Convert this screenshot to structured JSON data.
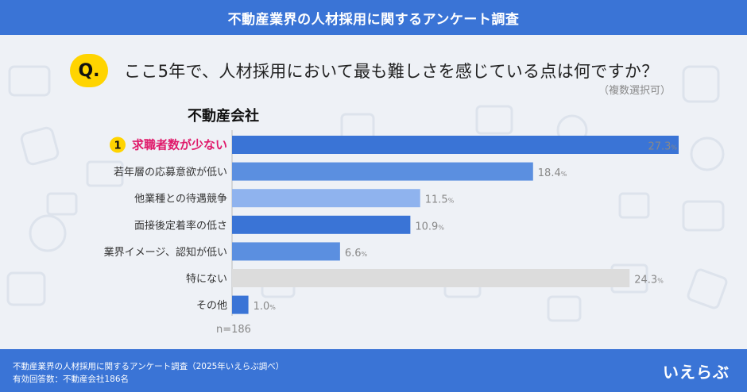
{
  "header": {
    "title": "不動産業界の人材採用に関するアンケート調査"
  },
  "question": {
    "badge": "Q.",
    "text": "ここ5年で、人材採用において最も難しさを感じている点は何ですか？",
    "note": "（複数選択可）"
  },
  "group_label": "不動産会社",
  "rank_badge": "1",
  "colors": {
    "header": "#3a74d6",
    "bar_primary": "#3a74d6",
    "bar_mid": "#5b8fe0",
    "bar_light": "#8fb3ee",
    "bar_other": "#dcdcdc",
    "highlight_text": "#e0196a",
    "badge": "#ffd400"
  },
  "chart_data": {
    "type": "bar",
    "orientation": "horizontal",
    "categories": [
      "求職者数が少ない",
      "若年層の応募意欲が低い",
      "他業種との待遇競争",
      "面接後定着率の低さ",
      "業界イメージ、認知が低い",
      "特にない",
      "その他"
    ],
    "values": [
      27.3,
      18.4,
      11.5,
      10.9,
      6.6,
      24.3,
      1.0
    ],
    "value_labels": [
      "27.3",
      "18.4",
      "11.5",
      "10.9",
      "6.6",
      "24.3",
      "1.0"
    ],
    "unit": "%",
    "xlim": [
      0,
      27.3
    ],
    "grid": false,
    "legend": "none",
    "highlight_index": 0
  },
  "n_label": "n=186",
  "footer": {
    "line1": "不動産業界の人材採用に関するアンケート調査（2025年いえらぶ調べ）",
    "line2": "有効回答数：不動産会社186名"
  },
  "logo_text": "いえらぶ"
}
